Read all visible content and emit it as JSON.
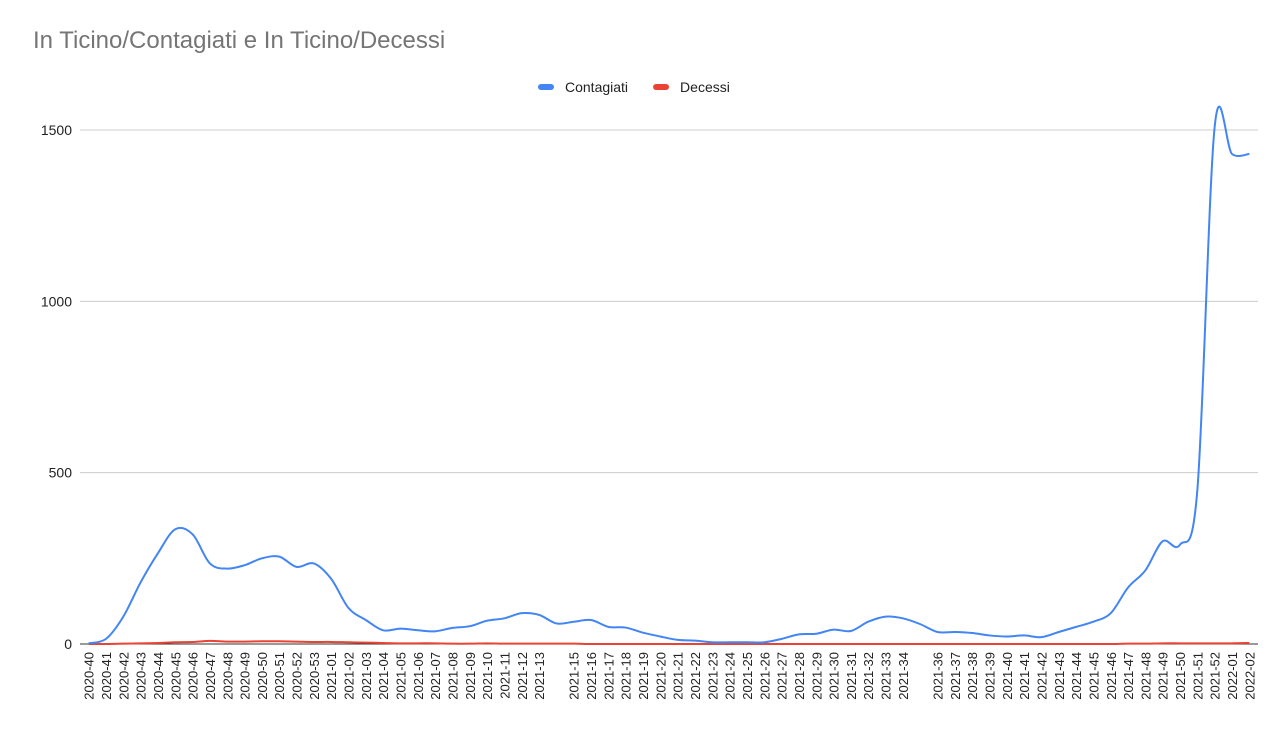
{
  "chart_data": {
    "type": "line",
    "title": "In Ticino/Contagiati e In Ticino/Decessi",
    "categories": [
      "2020-40",
      "2020-41",
      "2020-42",
      "2020-43",
      "2020-44",
      "2020-45",
      "2020-46",
      "2020-47",
      "2020-48",
      "2020-49",
      "2020-50",
      "2020-51",
      "2020-52",
      "2020-53",
      "2021-01",
      "2021-02",
      "2021-03",
      "2021-04",
      "2021-05",
      "2021-06",
      "2021-07",
      "2021-08",
      "2021-09",
      "2021-10",
      "2021-11",
      "2021-12",
      "2021-13",
      null,
      "2021-15",
      "2021-16",
      "2021-17",
      "2021-18",
      "2021-19",
      "2021-20",
      "2021-21",
      "2021-22",
      "2021-23",
      "2021-24",
      "2021-25",
      "2021-26",
      "2021-27",
      "2021-28",
      "2021-29",
      "2021-30",
      "2021-31",
      "2021-32",
      "2021-33",
      "2021-34",
      null,
      "2021-36",
      "2021-37",
      "2021-38",
      "2021-39",
      "2021-40",
      "2021-41",
      "2021-42",
      "2021-43",
      "2021-44",
      "2021-45",
      "2021-46",
      "2021-47",
      "2021-48",
      "2021-49",
      "2021-50",
      "2021-51",
      "2021-52",
      "2022-01",
      "2022-02"
    ],
    "series": [
      {
        "name": "Contagiati",
        "color": "#4285f4",
        "values": [
          2,
          15,
          80,
          180,
          265,
          335,
          320,
          235,
          220,
          230,
          250,
          255,
          225,
          235,
          190,
          105,
          70,
          40,
          45,
          40,
          37,
          47,
          52,
          68,
          75,
          90,
          85,
          60,
          65,
          70,
          50,
          48,
          33,
          22,
          12,
          10,
          5,
          5,
          5,
          5,
          15,
          28,
          30,
          42,
          38,
          65,
          80,
          75,
          58,
          35,
          35,
          32,
          25,
          22,
          25,
          20,
          35,
          50,
          65,
          90,
          165,
          215,
          300,
          290,
          450,
          1510,
          1430,
          1430
        ]
      },
      {
        "name": "Decessi",
        "color": "#ea4335",
        "values": [
          0,
          0,
          1,
          2,
          3,
          5,
          6,
          9,
          7,
          7,
          8,
          8,
          7,
          6,
          6,
          5,
          4,
          3,
          2,
          2,
          2,
          1,
          1,
          2,
          1,
          1,
          1,
          1,
          1,
          0,
          0,
          0,
          0,
          0,
          0,
          0,
          0,
          0,
          0,
          0,
          0,
          0,
          0,
          0,
          0,
          0,
          0,
          0,
          0,
          0,
          0,
          0,
          0,
          0,
          0,
          0,
          0,
          0,
          0,
          0,
          1,
          1,
          2,
          2,
          2,
          2,
          2,
          3
        ]
      }
    ],
    "ylim": [
      0,
      1500
    ],
    "yticks": [
      0,
      500,
      1000,
      1500
    ],
    "grid": true,
    "legend": "top"
  }
}
